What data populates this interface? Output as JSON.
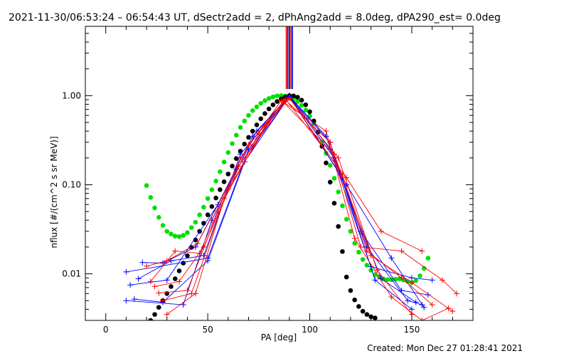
{
  "chart_data": {
    "type": "scatter",
    "title": "2021-11-30/06:53:24 – 06:54:43 UT, dSectr2add = 2, dPhAng2add = 8.0deg, dPA290_est=  0.0deg",
    "xlabel": "PA [deg]",
    "ylabel": "nflux [#/(cm^2 s sr MeV)]",
    "xlim": [
      -10,
      180
    ],
    "ylim": [
      0.003,
      6
    ],
    "yscale": "log",
    "xticks": [
      0,
      50,
      100,
      150
    ],
    "yticks": [
      {
        "value": 0.01,
        "label": "0.01"
      },
      {
        "value": 0.1,
        "label": "0.10"
      },
      {
        "value": 1,
        "label": "1.00"
      }
    ],
    "grid": false,
    "legend": "none",
    "colors": {
      "red": "#ff0000",
      "blue": "#0000ff",
      "green": "#00e000",
      "black": "#000000"
    },
    "vertical_lines": [
      {
        "x": 88.5,
        "color": "#ff0000"
      },
      {
        "x": 89.2,
        "color": "#0000ff"
      },
      {
        "x": 90.0,
        "color": "#000000"
      },
      {
        "x": 90.8,
        "color": "#ff0000"
      },
      {
        "x": 91.5,
        "color": "#0000ff"
      }
    ],
    "series": [
      {
        "color": "#00e000",
        "style": "dots",
        "x": [
          20,
          22,
          24,
          26,
          28,
          30,
          32,
          34,
          36,
          38,
          40,
          42,
          44,
          46,
          48,
          50,
          52,
          54,
          56,
          58,
          60,
          62,
          64,
          66,
          68,
          70,
          72,
          74,
          76,
          78,
          80,
          82,
          84,
          86,
          88,
          90,
          92,
          94,
          96,
          98,
          100,
          102,
          104,
          106,
          108,
          110,
          112,
          114,
          116,
          118,
          120,
          122,
          124,
          126,
          128,
          130,
          132,
          134,
          136,
          138,
          140,
          142,
          144,
          146,
          148,
          150,
          152,
          154,
          156,
          158
        ],
        "y": [
          0.098,
          0.072,
          0.055,
          0.043,
          0.035,
          0.03,
          0.028,
          0.0265,
          0.0262,
          0.027,
          0.029,
          0.033,
          0.038,
          0.046,
          0.056,
          0.07,
          0.088,
          0.11,
          0.14,
          0.18,
          0.23,
          0.29,
          0.36,
          0.44,
          0.52,
          0.6,
          0.68,
          0.75,
          0.82,
          0.88,
          0.93,
          0.97,
          0.995,
          1.0,
          0.99,
          0.96,
          0.92,
          0.86,
          0.78,
          0.69,
          0.59,
          0.49,
          0.39,
          0.3,
          0.225,
          0.165,
          0.118,
          0.083,
          0.058,
          0.041,
          0.03,
          0.022,
          0.0175,
          0.0145,
          0.0125,
          0.011,
          0.0098,
          0.0092,
          0.0088,
          0.0086,
          0.0086,
          0.0087,
          0.0088,
          0.0085,
          0.0082,
          0.008,
          0.0084,
          0.0095,
          0.0115,
          0.015
        ]
      },
      {
        "color": "#000000",
        "style": "dots",
        "x": [
          22,
          24,
          26,
          28,
          30,
          32,
          34,
          36,
          38,
          40,
          42,
          44,
          46,
          48,
          50,
          52,
          54,
          56,
          58,
          60,
          62,
          64,
          66,
          68,
          70,
          72,
          74,
          76,
          78,
          80,
          82,
          84,
          86,
          88,
          90,
          92,
          94,
          96,
          98,
          100,
          102,
          104,
          106,
          108,
          110,
          112,
          114,
          116,
          118,
          120,
          122,
          124,
          126,
          128,
          130,
          132
        ],
        "y": [
          0.003,
          0.0035,
          0.0042,
          0.005,
          0.006,
          0.0072,
          0.0088,
          0.0108,
          0.0132,
          0.016,
          0.0198,
          0.024,
          0.03,
          0.037,
          0.046,
          0.057,
          0.071,
          0.088,
          0.108,
          0.132,
          0.162,
          0.197,
          0.238,
          0.286,
          0.34,
          0.4,
          0.47,
          0.55,
          0.63,
          0.71,
          0.79,
          0.86,
          0.92,
          0.97,
          1.0,
          0.995,
          0.96,
          0.89,
          0.79,
          0.66,
          0.52,
          0.39,
          0.27,
          0.176,
          0.107,
          0.062,
          0.034,
          0.0178,
          0.0092,
          0.0065,
          0.0051,
          0.0043,
          0.0038,
          0.0035,
          0.0033,
          0.0032
        ]
      },
      {
        "color": "#0000ff",
        "style": "line-plus",
        "x": [
          10,
          50,
          70,
          90,
          110,
          130,
          150,
          160
        ],
        "y": [
          0.0105,
          0.015,
          0.25,
          1.0,
          0.25,
          0.012,
          0.009,
          0.0085
        ]
      },
      {
        "color": "#0000ff",
        "style": "line-plus",
        "x": [
          12,
          30,
          55,
          72,
          90,
          108,
          125,
          145,
          158
        ],
        "y": [
          0.0075,
          0.0085,
          0.06,
          0.35,
          0.99,
          0.35,
          0.03,
          0.0065,
          0.0058
        ]
      },
      {
        "color": "#0000ff",
        "style": "line-plus",
        "x": [
          14,
          28,
          50,
          68,
          90,
          112,
          128,
          148,
          155
        ],
        "y": [
          0.0052,
          0.0048,
          0.014,
          0.18,
          0.98,
          0.2,
          0.02,
          0.005,
          0.0045
        ]
      },
      {
        "color": "#0000ff",
        "style": "line-plus",
        "x": [
          16,
          32,
          48,
          66,
          90,
          115,
          135,
          152
        ],
        "y": [
          0.0088,
          0.014,
          0.016,
          0.22,
          0.97,
          0.13,
          0.0088,
          0.0048
        ]
      },
      {
        "color": "#0000ff",
        "style": "line-plus",
        "x": [
          10,
          38,
          52,
          74,
          90,
          118,
          140,
          156
        ],
        "y": [
          0.005,
          0.0045,
          0.04,
          0.4,
          1.0,
          0.1,
          0.015,
          0.0042
        ]
      },
      {
        "color": "#0000ff",
        "style": "line-plus",
        "x": [
          18,
          28,
          44,
          64,
          90,
          110,
          132,
          150
        ],
        "y": [
          0.0134,
          0.0132,
          0.02,
          0.15,
          0.96,
          0.3,
          0.0085,
          0.004
        ]
      },
      {
        "color": "#ff0000",
        "style": "line-plus",
        "x": [
          20,
          30,
          45,
          65,
          88,
          110,
          125,
          145,
          165,
          172
        ],
        "y": [
          0.0122,
          0.014,
          0.022,
          0.16,
          0.9,
          0.3,
          0.02,
          0.018,
          0.0085,
          0.006
        ]
      },
      {
        "color": "#ff0000",
        "style": "line-plus",
        "x": [
          24,
          36,
          48,
          70,
          87,
          112,
          130,
          150,
          170
        ],
        "y": [
          0.0072,
          0.0082,
          0.02,
          0.28,
          0.85,
          0.22,
          0.016,
          0.008,
          0.0038
        ]
      },
      {
        "color": "#ff0000",
        "style": "line-plus",
        "x": [
          28,
          42,
          60,
          80,
          90,
          116,
          128,
          145,
          160
        ],
        "y": [
          0.005,
          0.006,
          0.09,
          0.5,
          0.95,
          0.13,
          0.018,
          0.009,
          0.0045
        ]
      },
      {
        "color": "#ff0000",
        "style": "line-plus",
        "x": [
          22,
          34,
          46,
          66,
          86,
          108,
          122,
          140,
          155,
          168
        ],
        "y": [
          0.0082,
          0.018,
          0.017,
          0.2,
          0.88,
          0.4,
          0.025,
          0.0055,
          0.003,
          0.0041
        ]
      },
      {
        "color": "#ff0000",
        "style": "line-plus",
        "x": [
          26,
          40,
          55,
          75,
          88,
          118,
          135,
          155
        ],
        "y": [
          0.0061,
          0.0065,
          0.05,
          0.38,
          0.92,
          0.12,
          0.03,
          0.018
        ]
      },
      {
        "color": "#ff0000",
        "style": "line-plus",
        "x": [
          30,
          44,
          58,
          78,
          90,
          114,
          133,
          150
        ],
        "y": [
          0.0035,
          0.006,
          0.07,
          0.45,
          0.93,
          0.2,
          0.011,
          0.0035
        ]
      }
    ]
  },
  "footer": {
    "created": "Created: Mon Dec 27 01:28:41 2021"
  }
}
